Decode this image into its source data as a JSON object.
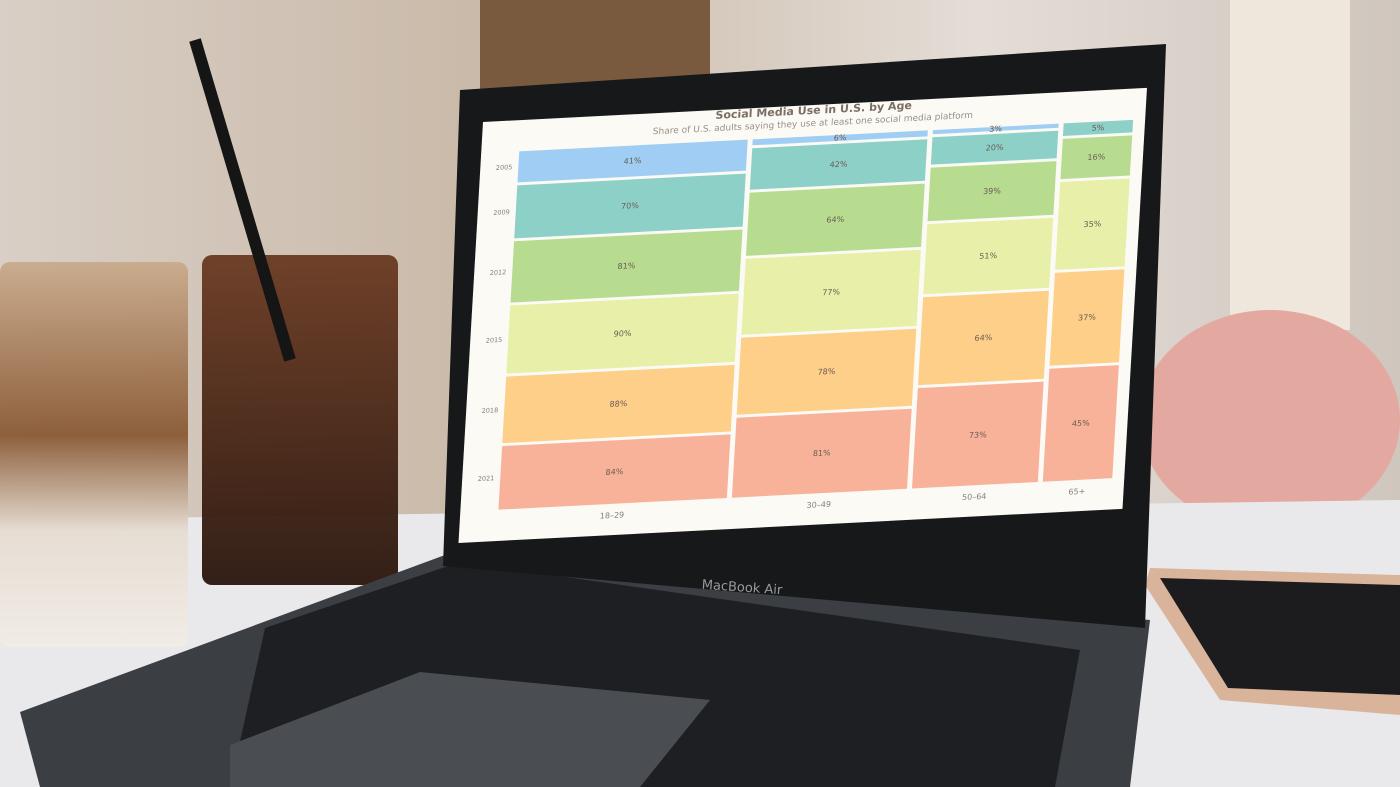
{
  "chart_data": {
    "type": "mosaic",
    "title": "Social Media Use in U.S. by Age",
    "subtitle": "Share of U.S. adults saying they use at least one social media platform",
    "categories": [
      "18–29",
      "30–49",
      "50–64",
      "65+"
    ],
    "series": [
      {
        "name": "2005",
        "color": "#9fcdf3",
        "values": [
          41,
          6,
          3,
          null
        ],
        "value_labels": [
          "41%",
          "6%",
          "3%",
          null
        ]
      },
      {
        "name": "2009",
        "color": "#8dd0c8",
        "values": [
          70,
          42,
          20,
          5
        ],
        "value_labels": [
          "70%",
          "42%",
          "20%",
          "5%"
        ]
      },
      {
        "name": "2012",
        "color": "#b7dc90",
        "values": [
          81,
          64,
          39,
          16
        ],
        "value_labels": [
          "81%",
          "64%",
          "39%",
          "16%"
        ]
      },
      {
        "name": "2015",
        "color": "#e7efa8",
        "values": [
          90,
          77,
          51,
          35
        ],
        "value_labels": [
          "90%",
          "77%",
          "51%",
          "35%"
        ]
      },
      {
        "name": "2018",
        "color": "#fdcf88",
        "values": [
          88,
          78,
          64,
          37
        ],
        "value_labels": [
          "88%",
          "78%",
          "64%",
          "37%"
        ]
      },
      {
        "name": "2021",
        "color": "#f8b29a",
        "values": [
          84,
          81,
          73,
          45
        ],
        "value_labels": [
          "84%",
          "81%",
          "73%",
          "45%"
        ]
      }
    ]
  },
  "laptop_label": "MacBook Air"
}
